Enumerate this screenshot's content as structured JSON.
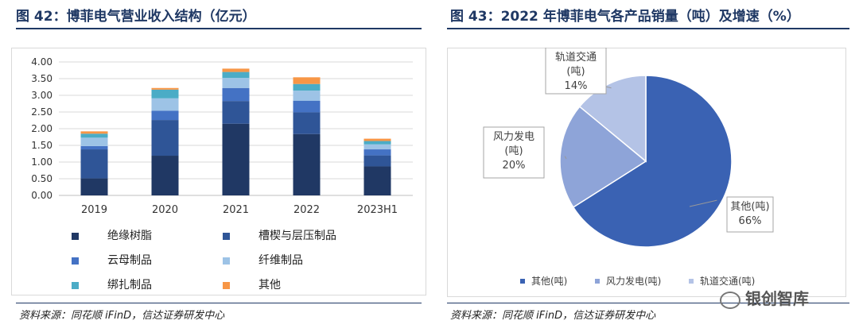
{
  "left": {
    "title": "图 42：博菲电气营业收入结构（亿元）",
    "source": "资料来源：同花顺 iFinD，信达证券研发中心"
  },
  "right": {
    "title": "图 43：2022 年博菲电气各产品销量（吨）及增速（%）",
    "source": "资料来源：同花顺 iFinD，信达证券研发中心"
  },
  "watermark": "银创智库",
  "chart_data": [
    {
      "type": "bar",
      "stacked": true,
      "title": "",
      "categories": [
        "2019",
        "2020",
        "2021",
        "2022",
        "2023H1"
      ],
      "ylim": [
        0,
        4
      ],
      "yticks": [
        "0.00",
        "0.50",
        "1.00",
        "1.50",
        "2.00",
        "2.50",
        "3.00",
        "3.50",
        "4.00"
      ],
      "grid": true,
      "legend_position": "bottom",
      "series": [
        {
          "name": "绝缘树脂",
          "color": "#203864",
          "values": [
            0.51,
            1.19,
            2.15,
            1.84,
            0.87
          ]
        },
        {
          "name": "槽楔与层压制品",
          "color": "#2f5597",
          "values": [
            0.87,
            1.07,
            0.68,
            0.65,
            0.33
          ]
        },
        {
          "name": "云母制品",
          "color": "#4472c4",
          "values": [
            0.1,
            0.28,
            0.39,
            0.35,
            0.18
          ]
        },
        {
          "name": "纤维制品",
          "color": "#9dc3e6",
          "values": [
            0.25,
            0.37,
            0.3,
            0.3,
            0.15
          ]
        },
        {
          "name": "绑扎制品",
          "color": "#4bacc6",
          "values": [
            0.12,
            0.26,
            0.18,
            0.2,
            0.1
          ]
        },
        {
          "name": "其他",
          "color": "#f79646",
          "values": [
            0.07,
            0.05,
            0.1,
            0.2,
            0.07
          ]
        }
      ]
    },
    {
      "type": "pie",
      "title": "",
      "legend_position": "bottom",
      "slices": [
        {
          "name": "其他(吨)",
          "value": 66,
          "label": "其他(吨)",
          "pct": "66%",
          "color": "#3a62b3"
        },
        {
          "name": "风力发电(吨)",
          "value": 20,
          "label": "风力发电\n(吨)",
          "pct": "20%",
          "color": "#8ea4d8"
        },
        {
          "name": "轨道交通(吨)",
          "value": 14,
          "label": "轨道交通\n(吨)",
          "pct": "14%",
          "color": "#b4c3e6"
        }
      ]
    }
  ]
}
